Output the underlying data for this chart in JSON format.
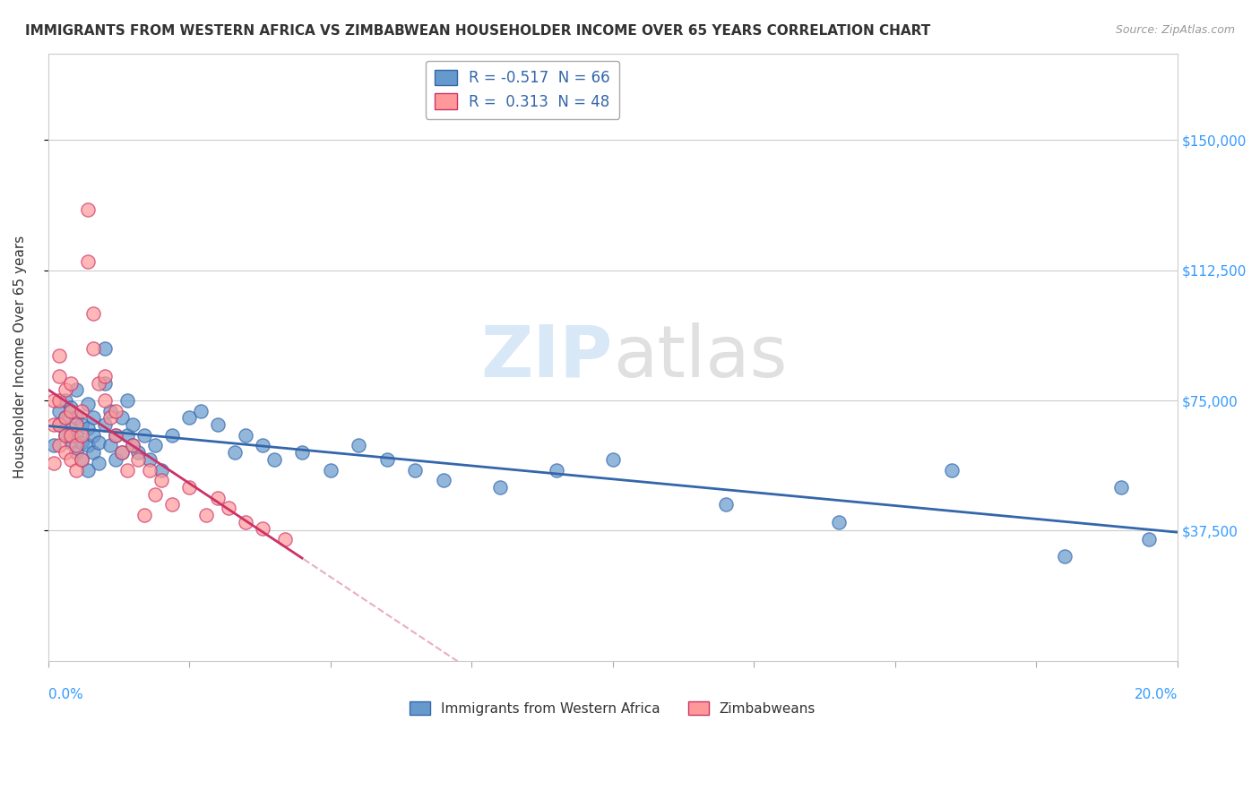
{
  "title": "IMMIGRANTS FROM WESTERN AFRICA VS ZIMBABWEAN HOUSEHOLDER INCOME OVER 65 YEARS CORRELATION CHART",
  "source": "Source: ZipAtlas.com",
  "ylabel": "Householder Income Over 65 years",
  "xlim": [
    0.0,
    0.2
  ],
  "ylim": [
    0,
    175000
  ],
  "yticks": [
    37500,
    75000,
    112500,
    150000
  ],
  "ytick_labels": [
    "$37,500",
    "$75,000",
    "$112,500",
    "$150,000"
  ],
  "blue_R": "-0.517",
  "blue_N": "66",
  "pink_R": "0.313",
  "pink_N": "48",
  "blue_color": "#6699CC",
  "pink_color": "#FF9999",
  "blue_line_color": "#3366AA",
  "pink_line_color": "#CC3366",
  "watermark_zip": "ZIP",
  "watermark_atlas": "atlas",
  "legend_label_blue": "Immigrants from Western Africa",
  "legend_label_pink": "Zimbabweans",
  "blue_scatter_x": [
    0.001,
    0.002,
    0.002,
    0.003,
    0.003,
    0.003,
    0.004,
    0.004,
    0.004,
    0.005,
    0.005,
    0.005,
    0.005,
    0.006,
    0.006,
    0.006,
    0.007,
    0.007,
    0.007,
    0.007,
    0.008,
    0.008,
    0.008,
    0.009,
    0.009,
    0.01,
    0.01,
    0.01,
    0.011,
    0.011,
    0.012,
    0.012,
    0.013,
    0.013,
    0.014,
    0.014,
    0.015,
    0.015,
    0.016,
    0.017,
    0.018,
    0.019,
    0.02,
    0.022,
    0.025,
    0.027,
    0.03,
    0.033,
    0.035,
    0.038,
    0.04,
    0.045,
    0.05,
    0.055,
    0.06,
    0.065,
    0.07,
    0.08,
    0.09,
    0.1,
    0.12,
    0.14,
    0.16,
    0.18,
    0.19,
    0.195
  ],
  "blue_scatter_y": [
    62000,
    68000,
    72000,
    65000,
    70000,
    75000,
    63000,
    67000,
    73000,
    60000,
    65000,
    70000,
    78000,
    58000,
    63000,
    68000,
    55000,
    62000,
    67000,
    74000,
    60000,
    65000,
    70000,
    57000,
    63000,
    90000,
    80000,
    68000,
    62000,
    72000,
    58000,
    65000,
    70000,
    60000,
    65000,
    75000,
    62000,
    68000,
    60000,
    65000,
    58000,
    62000,
    55000,
    65000,
    70000,
    72000,
    68000,
    60000,
    65000,
    62000,
    58000,
    60000,
    55000,
    62000,
    58000,
    55000,
    52000,
    50000,
    55000,
    58000,
    45000,
    40000,
    55000,
    30000,
    50000,
    35000
  ],
  "pink_scatter_x": [
    0.001,
    0.001,
    0.001,
    0.002,
    0.002,
    0.002,
    0.002,
    0.002,
    0.003,
    0.003,
    0.003,
    0.003,
    0.004,
    0.004,
    0.004,
    0.004,
    0.005,
    0.005,
    0.005,
    0.006,
    0.006,
    0.006,
    0.007,
    0.007,
    0.008,
    0.008,
    0.009,
    0.01,
    0.01,
    0.011,
    0.012,
    0.012,
    0.013,
    0.014,
    0.015,
    0.016,
    0.017,
    0.018,
    0.019,
    0.02,
    0.022,
    0.025,
    0.028,
    0.03,
    0.032,
    0.035,
    0.038,
    0.042
  ],
  "pink_scatter_y": [
    57000,
    68000,
    75000,
    62000,
    68000,
    75000,
    82000,
    88000,
    60000,
    65000,
    70000,
    78000,
    58000,
    65000,
    72000,
    80000,
    55000,
    62000,
    68000,
    58000,
    65000,
    72000,
    115000,
    130000,
    90000,
    100000,
    80000,
    75000,
    82000,
    70000,
    65000,
    72000,
    60000,
    55000,
    62000,
    58000,
    42000,
    55000,
    48000,
    52000,
    45000,
    50000,
    42000,
    47000,
    44000,
    40000,
    38000,
    35000
  ]
}
